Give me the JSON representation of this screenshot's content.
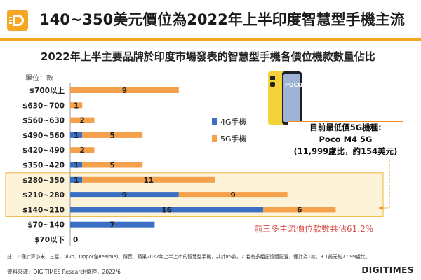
{
  "header": {
    "title": "140~350美元價位為2022年上半印度智慧型手機主流"
  },
  "chart_data": {
    "type": "bar",
    "orientation": "horizontal",
    "stacked": true,
    "title": "2022年上半主要品牌於印度市場發表的智慧型手機各價位機款數量佔比",
    "unit_label": "單位：款",
    "categories": [
      "$700以上",
      "$630~700",
      "$560~630",
      "$490~560",
      "$420~490",
      "$350~420",
      "$280~350",
      "$210~280",
      "$140~210",
      "$70~140",
      "$70以下"
    ],
    "series": [
      {
        "name": "4G手機",
        "color": "#3a6fc4",
        "values": [
          0,
          0,
          0,
          1,
          0,
          1,
          1,
          9,
          16,
          7,
          0
        ]
      },
      {
        "name": "5G手機",
        "color": "#f5a04a",
        "values": [
          9,
          1,
          2,
          5,
          2,
          5,
          11,
          9,
          6,
          0,
          0
        ]
      }
    ],
    "bar_labels": [
      {
        "category": "$700以上",
        "labels": [
          "9"
        ]
      },
      {
        "category": "$630~700",
        "labels": [
          "1"
        ]
      },
      {
        "category": "$560~630",
        "labels": [
          "2"
        ]
      },
      {
        "category": "$490~560",
        "labels": [
          "1",
          "5"
        ]
      },
      {
        "category": "$420~490",
        "labels": [
          "2"
        ]
      },
      {
        "category": "$350~420",
        "labels": [
          "1",
          "5"
        ]
      },
      {
        "category": "$280~350",
        "labels": [
          "1",
          "11"
        ]
      },
      {
        "category": "$210~280",
        "labels": [
          "9",
          "9"
        ]
      },
      {
        "category": "$140~210",
        "labels": [
          "16",
          "6"
        ]
      },
      {
        "category": "$70~140",
        "labels": [
          "7"
        ]
      },
      {
        "category": "$70以下",
        "labels": [
          "0"
        ]
      }
    ],
    "highlight": [
      "$280~350",
      "$210~280",
      "$140~210"
    ],
    "legend_position": "right"
  },
  "callout": {
    "line1": "目前最低價5G機種:",
    "line2": "Poco M4 5G",
    "line3": "(11,999盧比，約154美元)"
  },
  "phone_label": "POCO M4 5G",
  "share_note": "前三多主流價位款數共佔61.2%",
  "footnote": "註：1.僅計算小米、三星、Vivo、Oppo(含Realme)、傳音、蘋果2022年上半上市的智慧型手機，共計85款。2.若有多組記憶體配置，僅計為1款。3.1美元約77.99盧比。",
  "source": "資料來源：DIGITIMES Research整理，2022/6",
  "brand": "DIGITIMES",
  "colors": {
    "accent": "#f5a623",
    "highlight_bg": "#fdf3d9",
    "highlight_border": "#f0b440"
  }
}
